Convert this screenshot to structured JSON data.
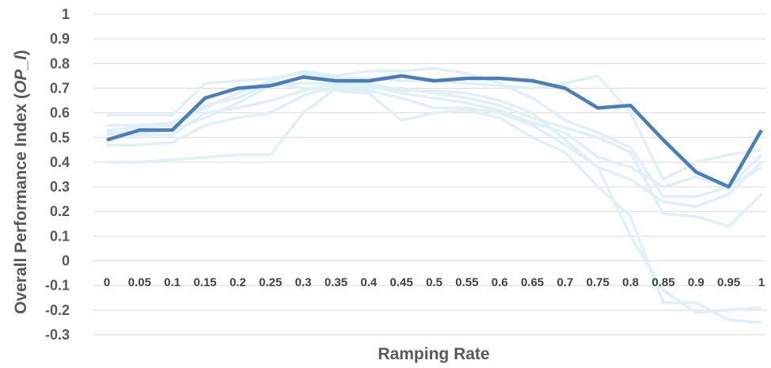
{
  "chart_data": {
    "type": "line",
    "xlabel": "Ramping Rate",
    "ylabel": "Overall Performance Index (",
    "ylabel_italic": "OP_I",
    "ylabel_close": ")",
    "ylim": [
      -0.3,
      1
    ],
    "yticks": [
      "1",
      "0.9",
      "0.8",
      "0.7",
      "0.6",
      "0.5",
      "0.4",
      "0.3",
      "0.2",
      "0.1",
      "0",
      "-0.1",
      "-0.2",
      "-0.3"
    ],
    "categories": [
      "0",
      "0.05",
      "0.1",
      "0.15",
      "0.2",
      "0.25",
      "0.3",
      "0.35",
      "0.4",
      "0.45",
      "0.5",
      "0.55",
      "0.6",
      "0.65",
      "0.7",
      "0.75",
      "0.8",
      "0.85",
      "0.9",
      "0.95",
      "1"
    ],
    "grid": true,
    "legend": "none",
    "colors": {
      "highlight": "#4a7ebb",
      "background_series": "#dff0f7",
      "grid": "#d9d9d9"
    },
    "series": [
      {
        "highlight": true,
        "values": [
          0.49,
          0.53,
          0.53,
          0.66,
          0.7,
          0.71,
          0.745,
          0.73,
          0.73,
          0.75,
          0.73,
          0.74,
          0.74,
          0.73,
          0.7,
          0.62,
          0.63,
          0.49,
          0.36,
          0.3,
          0.53
        ]
      },
      {
        "values": [
          0.4,
          0.4,
          0.41,
          0.42,
          0.43,
          0.43,
          0.6,
          0.7,
          0.69,
          0.66,
          0.62,
          0.62,
          0.6,
          0.55,
          0.47,
          0.38,
          0.33,
          0.24,
          0.22,
          0.27,
          0.4
        ]
      },
      {
        "values": [
          0.59,
          0.59,
          0.59,
          0.72,
          0.73,
          0.74,
          0.76,
          0.74,
          0.74,
          0.73,
          0.73,
          0.72,
          0.71,
          0.7,
          0.72,
          0.75,
          0.6,
          0.33,
          0.4,
          0.43,
          0.45
        ]
      },
      {
        "values": [
          0.55,
          0.55,
          0.56,
          0.63,
          0.66,
          0.72,
          0.7,
          0.69,
          0.68,
          0.57,
          0.6,
          0.61,
          0.58,
          0.5,
          0.44,
          0.3,
          0.18,
          -0.17,
          -0.17,
          -0.24,
          -0.25
        ]
      },
      {
        "values": [
          0.52,
          0.52,
          0.53,
          0.58,
          0.64,
          0.71,
          0.72,
          0.72,
          0.71,
          0.68,
          0.66,
          0.64,
          0.61,
          0.56,
          0.52,
          0.42,
          0.38,
          0.3,
          0.34,
          0.3,
          0.43
        ]
      },
      {
        "values": [
          0.47,
          0.47,
          0.48,
          0.55,
          0.58,
          0.6,
          0.67,
          0.71,
          0.7,
          0.7,
          0.68,
          0.66,
          0.63,
          0.58,
          0.54,
          0.5,
          0.44,
          0.19,
          0.18,
          0.14,
          0.27
        ]
      },
      {
        "values": [
          0.51,
          0.51,
          0.51,
          0.6,
          0.62,
          0.65,
          0.69,
          0.72,
          0.72,
          0.69,
          0.69,
          0.68,
          0.65,
          0.6,
          0.49,
          0.38,
          0.1,
          -0.12,
          -0.21,
          -0.2,
          -0.19
        ]
      },
      {
        "values": [
          0.53,
          0.54,
          0.55,
          0.62,
          0.68,
          0.73,
          0.77,
          0.75,
          0.77,
          0.77,
          0.78,
          0.76,
          0.72,
          0.66,
          0.57,
          0.52,
          0.46,
          0.26,
          0.26,
          0.3,
          0.38
        ]
      }
    ]
  }
}
